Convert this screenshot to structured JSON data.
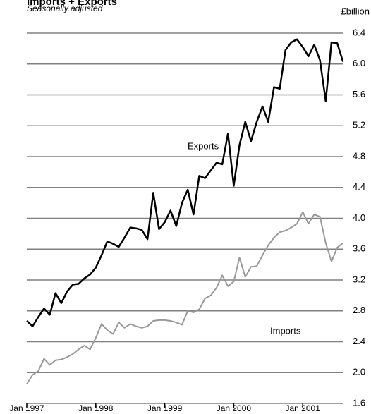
{
  "chart_data": {
    "type": "line",
    "title": "Imports + Exports",
    "subtitle": "Seasonally adjusted",
    "y_axis_label": "£billion",
    "categories": [
      "Jan 1997",
      null,
      null,
      null,
      null,
      null,
      null,
      null,
      null,
      null,
      null,
      null,
      "Jan 1998",
      null,
      null,
      null,
      null,
      null,
      null,
      null,
      null,
      null,
      null,
      null,
      "Jan 1999",
      null,
      null,
      null,
      null,
      null,
      null,
      null,
      null,
      null,
      null,
      null,
      "Jan 2000",
      null,
      null,
      null,
      null,
      null,
      null,
      null,
      null,
      null,
      null,
      null,
      "Jan 2001",
      null,
      null,
      null,
      null,
      null,
      null,
      null
    ],
    "series": [
      {
        "name": "Exports",
        "color": "#000000",
        "values": [
          2.67,
          2.6,
          2.72,
          2.83,
          2.75,
          3.03,
          2.9,
          3.05,
          3.14,
          3.15,
          3.22,
          3.27,
          3.36,
          3.52,
          3.7,
          3.67,
          3.63,
          3.75,
          3.88,
          3.87,
          3.85,
          3.73,
          4.33,
          3.86,
          3.95,
          4.1,
          3.9,
          4.2,
          4.37,
          4.05,
          4.55,
          4.52,
          4.62,
          4.72,
          4.7,
          5.1,
          4.42,
          4.95,
          5.25,
          5.0,
          5.25,
          5.45,
          5.25,
          5.7,
          5.68,
          6.18,
          6.28,
          6.32,
          6.22,
          6.1,
          6.25,
          6.05,
          5.52,
          6.28,
          6.27,
          6.03
        ]
      },
      {
        "name": "Imports",
        "color": "#999999",
        "values": [
          1.85,
          1.97,
          2.02,
          2.18,
          2.1,
          2.16,
          2.17,
          2.2,
          2.24,
          2.3,
          2.35,
          2.3,
          2.45,
          2.63,
          2.55,
          2.5,
          2.65,
          2.58,
          2.63,
          2.6,
          2.58,
          2.6,
          2.67,
          2.68,
          2.68,
          2.67,
          2.65,
          2.62,
          2.8,
          2.78,
          2.82,
          2.96,
          3.0,
          3.1,
          3.26,
          3.12,
          3.18,
          3.49,
          3.24,
          3.37,
          3.38,
          3.52,
          3.65,
          3.75,
          3.82,
          3.84,
          3.88,
          3.93,
          4.08,
          3.93,
          4.05,
          4.02,
          3.68,
          3.44,
          3.62,
          3.68
        ]
      }
    ],
    "ylim": [
      1.6,
      6.4
    ],
    "yticks": [
      {
        "value": 1.6,
        "label": "1.6"
      },
      {
        "value": 2.0,
        "label": "2.0"
      },
      {
        "value": 2.4,
        "label": "2.4"
      },
      {
        "value": 2.8,
        "label": "2.8"
      },
      {
        "value": 3.2,
        "label": "3.2"
      },
      {
        "value": 3.6,
        "label": "3.6"
      },
      {
        "value": 4.0,
        "label": "4.0"
      },
      {
        "value": 4.4,
        "label": "4.4"
      },
      {
        "value": 4.8,
        "label": "4.8"
      },
      {
        "value": 5.2,
        "label": "5.2"
      },
      {
        "value": 5.6,
        "label": "5.6"
      },
      {
        "value": 6.0,
        "label": "6.0"
      },
      {
        "value": 6.4,
        "label": "6.4"
      }
    ],
    "grid": true
  }
}
